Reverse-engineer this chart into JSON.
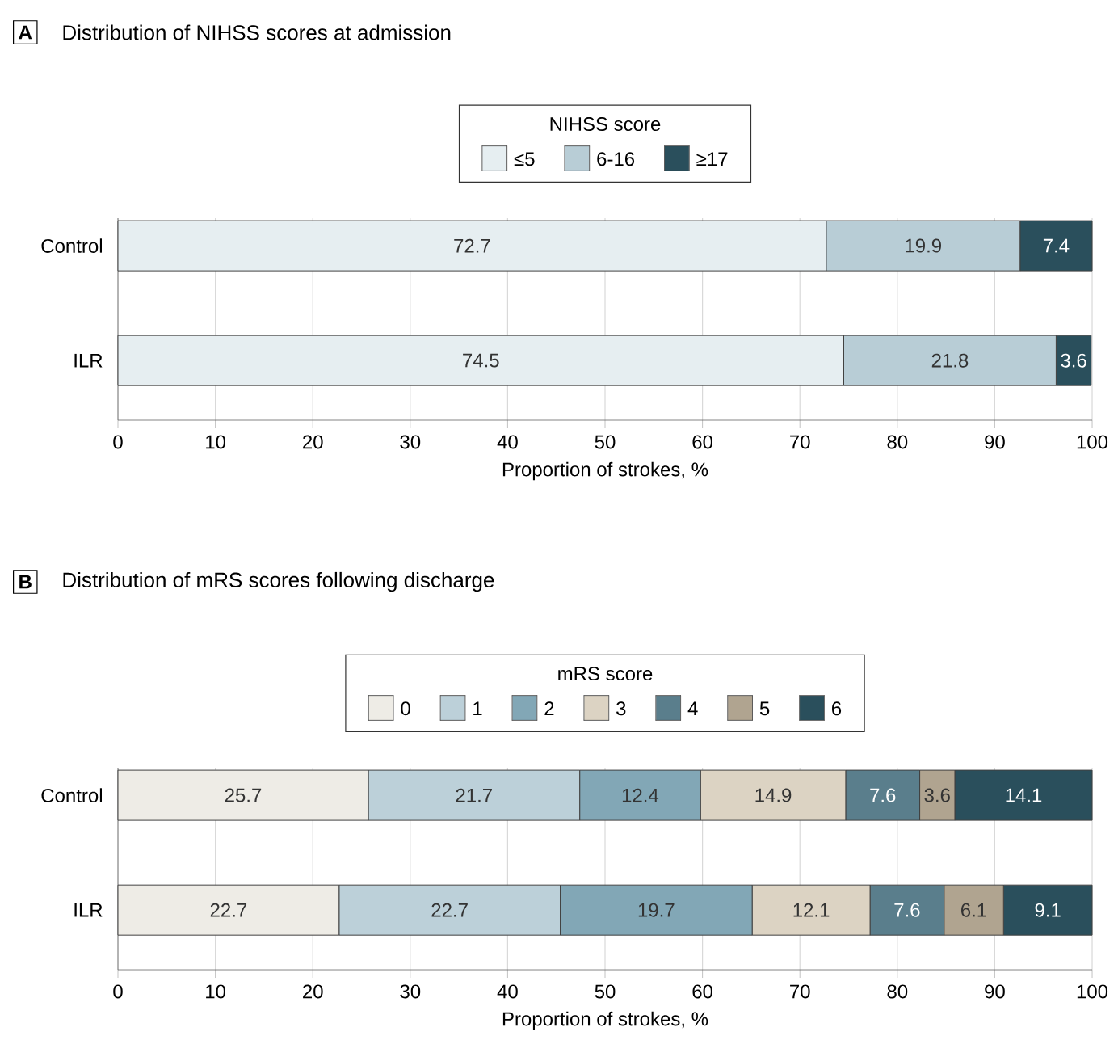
{
  "chart_data": [
    {
      "type": "bar",
      "orientation": "horizontal",
      "stacked": true,
      "title": "Distribution of NIHSS scores at admission",
      "annotations": [
        "A"
      ],
      "xlabel": "Proportion of strokes, %",
      "legend_title": "NIHSS score",
      "legend": "top",
      "grid": "x",
      "data_labels": true,
      "categories": [
        "Control",
        "ILR"
      ],
      "xlim": [
        0,
        100
      ],
      "xticks": [
        0,
        10,
        20,
        30,
        40,
        50,
        60,
        70,
        80,
        90,
        100
      ],
      "series": [
        {
          "name": "≤5",
          "color": "#e6eef1",
          "values": [
            72.7,
            74.5
          ]
        },
        {
          "name": "6-16",
          "color": "#b8cdd6",
          "values": [
            19.9,
            21.8
          ]
        },
        {
          "name": "≥17",
          "color": "#2a4f5c",
          "values": [
            7.4,
            3.6
          ]
        }
      ]
    },
    {
      "type": "bar",
      "orientation": "horizontal",
      "stacked": true,
      "title": "Distribution of mRS scores following discharge",
      "annotations": [
        "B"
      ],
      "xlabel": "Proportion of strokes, %",
      "legend_title": "mRS score",
      "legend": "top",
      "grid": "x",
      "data_labels": true,
      "categories": [
        "Control",
        "ILR"
      ],
      "xlim": [
        0,
        100
      ],
      "xticks": [
        0,
        10,
        20,
        30,
        40,
        50,
        60,
        70,
        80,
        90,
        100
      ],
      "series": [
        {
          "name": "0",
          "color": "#eeece6",
          "values": [
            25.7,
            22.7
          ]
        },
        {
          "name": "1",
          "color": "#bcd0d9",
          "values": [
            21.7,
            22.7
          ]
        },
        {
          "name": "2",
          "color": "#82a7b6",
          "values": [
            12.4,
            19.7
          ]
        },
        {
          "name": "3",
          "color": "#dcd3c3",
          "values": [
            14.9,
            12.1
          ]
        },
        {
          "name": "4",
          "color": "#5a7e8c",
          "values": [
            7.6,
            7.6
          ]
        },
        {
          "name": "5",
          "color": "#b0a490",
          "values": [
            3.6,
            6.1
          ]
        },
        {
          "name": "6",
          "color": "#2a4f5c",
          "values": [
            14.1,
            9.1
          ]
        }
      ]
    }
  ]
}
